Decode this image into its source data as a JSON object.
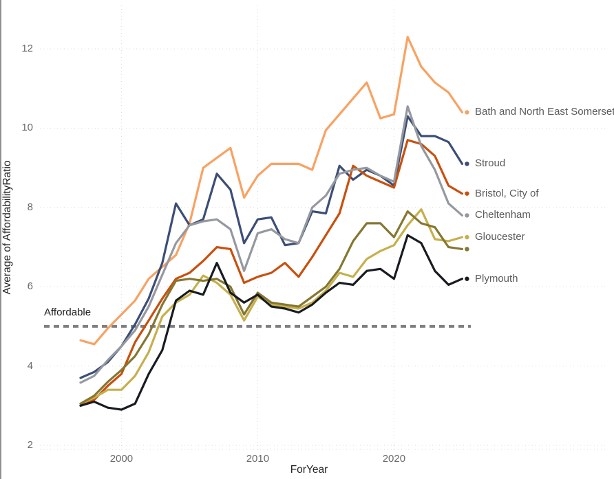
{
  "chart_data": {
    "type": "line",
    "title": "",
    "xlabel": "ForYear",
    "ylabel": "Average of AffordabilityRatio",
    "x_ticks": [
      2000,
      2010,
      2020
    ],
    "y_ticks": [
      2,
      4,
      6,
      8,
      10,
      12
    ],
    "xlim": [
      1996.5,
      2026
    ],
    "ylim": [
      2,
      13.1
    ],
    "grid": "dotted",
    "legend_position": "right-of-line-ends",
    "x": [
      1997,
      1998,
      1999,
      2000,
      2001,
      2002,
      2003,
      2004,
      2005,
      2006,
      2007,
      2008,
      2009,
      2010,
      2011,
      2012,
      2013,
      2014,
      2015,
      2016,
      2017,
      2018,
      2019,
      2020,
      2021,
      2022,
      2023,
      2024,
      2025
    ],
    "series": [
      {
        "name": "Bath and North East Somerset",
        "label_visible": true,
        "color": "#F8A263",
        "values": [
          4.65,
          4.55,
          4.95,
          5.3,
          5.65,
          6.2,
          6.5,
          6.8,
          7.6,
          9.0,
          9.25,
          9.5,
          8.25,
          8.8,
          9.1,
          9.1,
          9.1,
          8.95,
          9.95,
          10.35,
          10.75,
          11.15,
          10.25,
          10.35,
          12.3,
          11.55,
          11.15,
          10.9,
          10.4
        ]
      },
      {
        "name": "Stroud",
        "label_visible": true,
        "color": "#3C4E76",
        "values": [
          3.7,
          3.85,
          4.1,
          4.5,
          5.05,
          5.7,
          6.6,
          8.1,
          7.55,
          7.7,
          8.85,
          8.45,
          7.1,
          7.7,
          7.75,
          7.05,
          7.1,
          7.9,
          7.85,
          9.05,
          8.7,
          8.95,
          8.8,
          8.55,
          10.3,
          9.8,
          9.8,
          9.65,
          9.1
        ]
      },
      {
        "name": "Bristol, City of",
        "label_visible": true,
        "color": "#C8500E",
        "values": [
          3.0,
          3.15,
          3.5,
          3.8,
          4.6,
          5.15,
          5.7,
          6.2,
          6.35,
          6.65,
          7.0,
          6.95,
          6.1,
          6.25,
          6.35,
          6.6,
          6.25,
          6.75,
          7.3,
          7.85,
          9.05,
          8.8,
          8.65,
          8.5,
          9.7,
          9.6,
          9.3,
          8.55,
          8.35
        ]
      },
      {
        "name": "Cheltenham",
        "label_visible": true,
        "color": "#95999F",
        "values": [
          3.58,
          3.75,
          4.15,
          4.5,
          4.9,
          5.5,
          6.3,
          7.1,
          7.55,
          7.65,
          7.7,
          7.45,
          6.4,
          7.35,
          7.45,
          7.2,
          7.1,
          8.0,
          8.3,
          8.85,
          8.95,
          9.0,
          8.8,
          8.65,
          10.55,
          9.55,
          8.95,
          8.1,
          7.8
        ]
      },
      {
        "name": "Gloucester",
        "label_visible": true,
        "color": "#C6AF4D",
        "values": [
          3.05,
          3.2,
          3.4,
          3.4,
          3.75,
          4.35,
          5.25,
          5.6,
          5.8,
          6.28,
          6.1,
          5.8,
          5.15,
          5.75,
          5.55,
          5.5,
          5.45,
          5.6,
          5.9,
          6.35,
          6.25,
          6.7,
          6.9,
          7.05,
          7.55,
          7.95,
          7.2,
          7.15,
          7.25
        ]
      },
      {
        "name": "",
        "label_visible": false,
        "color": "#857732",
        "values": [
          3.05,
          3.25,
          3.6,
          3.9,
          4.25,
          4.8,
          5.55,
          6.15,
          6.2,
          6.15,
          6.2,
          6.0,
          5.3,
          5.85,
          5.6,
          5.55,
          5.5,
          5.75,
          6.0,
          6.45,
          7.15,
          7.6,
          7.6,
          7.25,
          7.9,
          7.6,
          7.5,
          7.0,
          6.95
        ]
      },
      {
        "name": "Plymouth",
        "label_visible": true,
        "color": "#181B20",
        "values": [
          3.0,
          3.1,
          2.95,
          2.9,
          3.05,
          3.8,
          4.4,
          5.65,
          5.9,
          5.8,
          6.6,
          5.85,
          5.6,
          5.8,
          5.5,
          5.45,
          5.35,
          5.55,
          5.85,
          6.1,
          6.05,
          6.4,
          6.45,
          6.2,
          7.3,
          7.1,
          6.4,
          6.05,
          6.2
        ]
      }
    ],
    "reference_line": {
      "label": "Affordable",
      "value": 5,
      "color": "#7F7F7F",
      "style": "dashed"
    }
  },
  "colors": {
    "grid": "#D9D9D9",
    "tick_text": "#6A6A6A",
    "axis_title_text": "#252423",
    "series_label_text": "#5A5A5A",
    "background": "#FFFFFF"
  }
}
